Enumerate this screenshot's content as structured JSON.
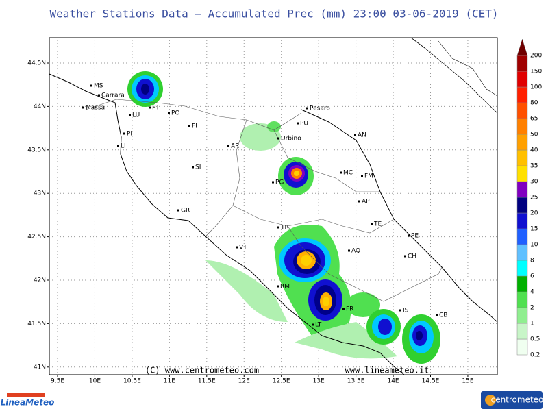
{
  "header": {
    "title": "Weather Stations Data — Accumulated Prec (mm)   23:00 03-06-2019 (CET)"
  },
  "map": {
    "lat_labels": [
      "44.5N",
      "44N",
      "43.5N",
      "43N",
      "42.5N",
      "42N",
      "41.5N",
      "41N"
    ],
    "lon_labels": [
      "9.5E",
      "10E",
      "10.5E",
      "11E",
      "11.5E",
      "12E",
      "12.5E",
      "13E",
      "13.5E",
      "14E",
      "14.5E",
      "15E"
    ],
    "cities": [
      "MS",
      "Carrara",
      "Massa",
      "LU",
      "PT",
      "PO",
      "FI",
      "PI",
      "LI",
      "SI",
      "GR",
      "AR",
      "Urbino",
      "PU",
      "Pesaro",
      "AN",
      "MC",
      "FM",
      "PG",
      "AP",
      "TE",
      "PE",
      "TR",
      "CH",
      "VT",
      "AQ",
      "RM",
      "FR",
      "IS",
      "CB",
      "LT"
    ],
    "credits": [
      "(C) www.centrometeo.com",
      "www.lineameteo.it"
    ]
  },
  "legend": {
    "labels": [
      "0.2",
      "0.5",
      "1",
      "2",
      "4",
      "6",
      "8",
      "10",
      "15",
      "20",
      "25",
      "30",
      "35",
      "40",
      "50",
      "65",
      "80",
      "100",
      "150",
      "200"
    ]
  },
  "logos": [
    "LineaMeteo",
    "centrometeo"
  ]
}
